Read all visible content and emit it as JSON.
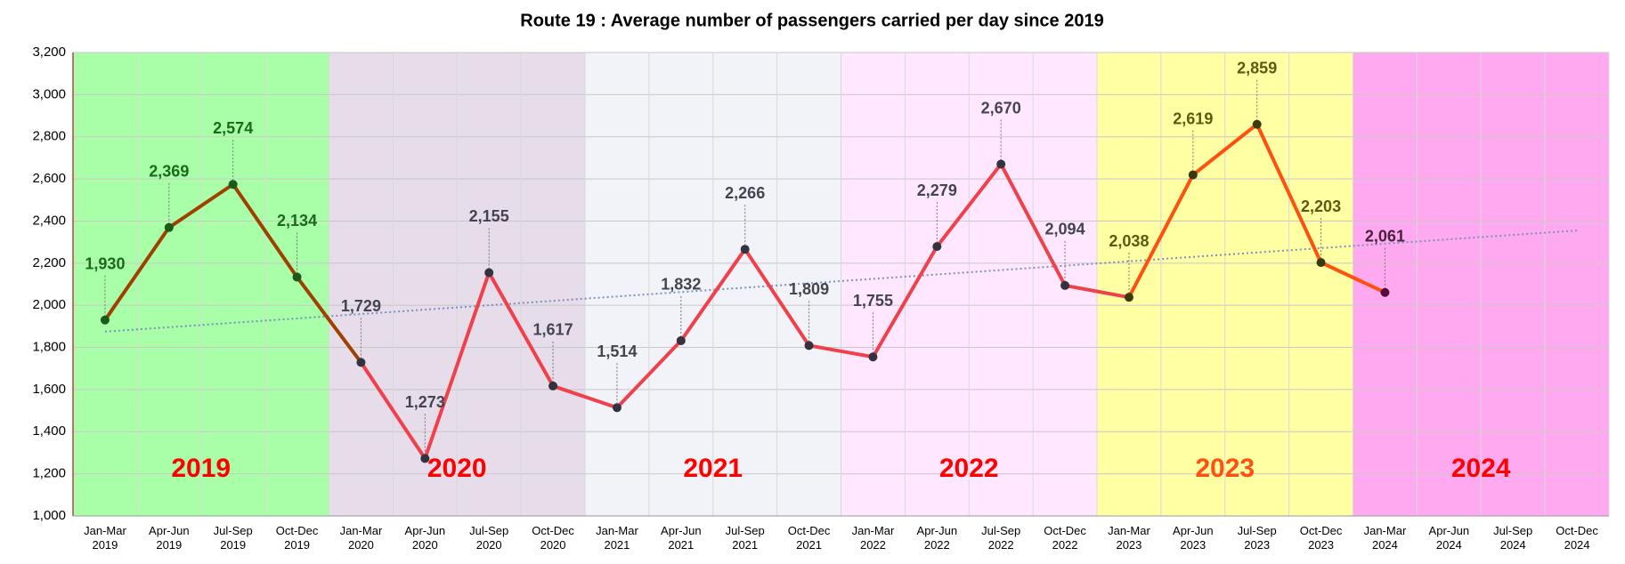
{
  "chart_data": {
    "type": "line",
    "title": "Route 19 : Average number of passengers carried per day since 2019",
    "categories": [
      "Jan-Mar 2019",
      "Apr-Jun 2019",
      "Jul-Sep 2019",
      "Oct-Dec 2019",
      "Jan-Mar 2020",
      "Apr-Jun 2020",
      "Jul-Sep 2020",
      "Oct-Dec 2020",
      "Jan-Mar 2021",
      "Apr-Jun 2021",
      "Jul-Sep 2021",
      "Oct-Dec 2021",
      "Jan-Mar 2022",
      "Apr-Jun 2022",
      "Jul-Sep 2022",
      "Oct-Dec 2022",
      "Jan-Mar 2023",
      "Apr-Jun 2023",
      "Jul-Sep 2023",
      "Oct-Dec 2023",
      "Jan-Mar 2024",
      "Apr-Jun 2024",
      "Jul-Sep 2024",
      "Oct-Dec 2024"
    ],
    "series": [
      {
        "name": "Average passengers per day",
        "color": "#f0404a",
        "values": [
          1930,
          2369,
          2574,
          2134,
          1729,
          1273,
          2155,
          1617,
          1514,
          1832,
          2266,
          1809,
          1755,
          2279,
          2670,
          2094,
          2038,
          2619,
          2859,
          2203,
          2061,
          null,
          null,
          null
        ],
        "value_labels": [
          "1,930",
          "2,369",
          "2,574",
          "2,134",
          "1,729",
          "1,273",
          "2,155",
          "1,617",
          "1,514",
          "1,832",
          "2,266",
          "1,809",
          "1,755",
          "2,279",
          "2,670",
          "2,094",
          "2,038",
          "2,619",
          "2,859",
          "2,203",
          "2,061",
          null,
          null,
          null
        ]
      }
    ],
    "years": [
      {
        "label": "2019",
        "band_color": "#a8ffa8",
        "text_color": "#ff0000",
        "line_color": "#a04000",
        "marker_color": "#1a5a1a",
        "value_label_color": "#1a6a1a"
      },
      {
        "label": "2020",
        "band_color": "#e6dcea",
        "text_color": "#ff0000",
        "line_color": "#f0404a",
        "marker_color": "#333340",
        "value_label_color": "#444450"
      },
      {
        "label": "2021",
        "band_color": "#f1f3f8",
        "text_color": "#ff0000",
        "line_color": "#f0404a",
        "marker_color": "#333340",
        "value_label_color": "#444450"
      },
      {
        "label": "2022",
        "band_color": "#ffe8ff",
        "text_color": "#ff0000",
        "line_color": "#f0404a",
        "marker_color": "#333340",
        "value_label_color": "#444450"
      },
      {
        "label": "2023",
        "band_color": "#ffffa4",
        "text_color": "#ff5010",
        "line_color": "#ff5010",
        "marker_color": "#3a3a10",
        "value_label_color": "#5a5a10"
      },
      {
        "label": "2024",
        "band_color": "#ffaaf0",
        "text_color": "#ff0000",
        "line_color": "#e0204a",
        "marker_color": "#5a0a3a",
        "value_label_color": "#4a2040"
      }
    ],
    "trendline": {
      "start": 1875,
      "end": 2355,
      "color": "#7a90c0"
    },
    "ylim": [
      1000,
      3200
    ],
    "yticks": [
      {
        "value": 1000,
        "label": "1,000"
      },
      {
        "value": 1200,
        "label": "1,200"
      },
      {
        "value": 1400,
        "label": "1,400"
      },
      {
        "value": 1600,
        "label": "1,600"
      },
      {
        "value": 1800,
        "label": "1,800"
      },
      {
        "value": 2000,
        "label": "2,000"
      },
      {
        "value": 2200,
        "label": "2,200"
      },
      {
        "value": 2400,
        "label": "2,400"
      },
      {
        "value": 2600,
        "label": "2,600"
      },
      {
        "value": 2800,
        "label": "2,800"
      },
      {
        "value": 3000,
        "label": "3,000"
      },
      {
        "value": 3200,
        "label": "3,200"
      }
    ],
    "grid": true
  }
}
